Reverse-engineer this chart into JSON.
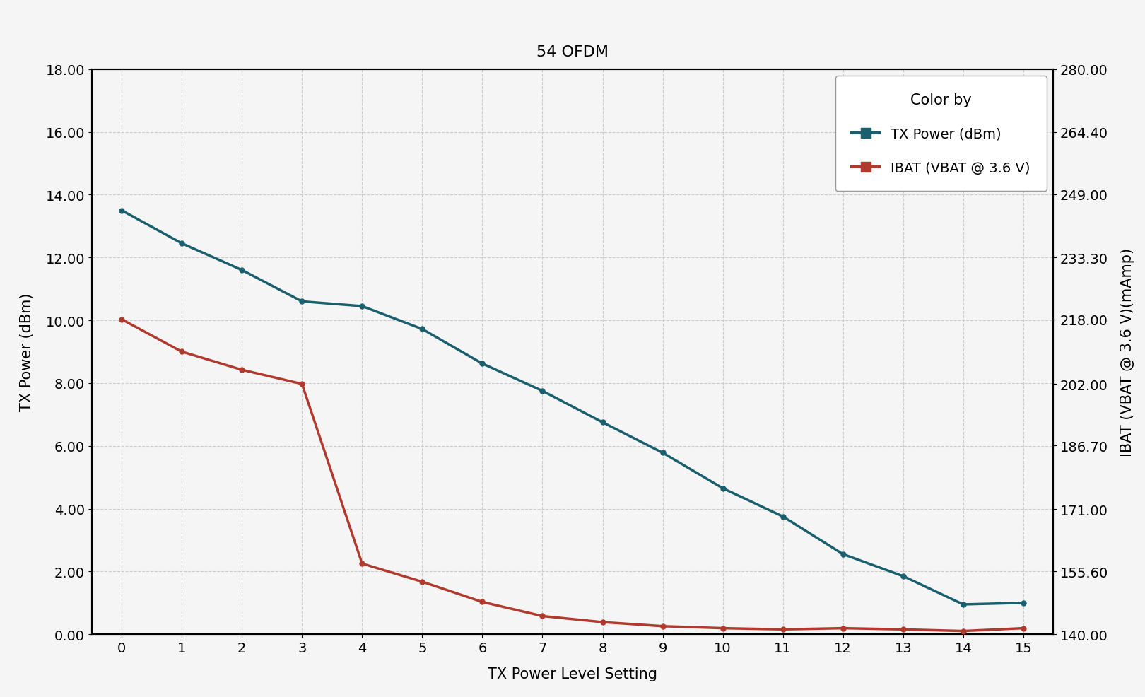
{
  "title": "54 OFDM",
  "xlabel": "TX Power Level Setting",
  "ylabel_left": "TX Power (dBm)",
  "ylabel_right": "IBAT (VBAT @ 3.6 V)(mAmp)",
  "legend_title": "Color by",
  "legend_label_1": "TX Power (dBm)",
  "legend_label_2": "IBAT (VBAT @ 3.6 V)",
  "x": [
    0,
    1,
    2,
    3,
    4,
    5,
    6,
    7,
    8,
    9,
    10,
    11,
    12,
    13,
    14,
    15
  ],
  "tx_power": [
    13.5,
    12.45,
    11.6,
    10.6,
    10.45,
    9.72,
    8.62,
    7.75,
    6.75,
    5.78,
    4.65,
    3.75,
    2.55,
    1.85,
    0.95,
    1.0
  ],
  "ibat": [
    218.0,
    210.0,
    205.5,
    202.0,
    157.5,
    153.0,
    148.0,
    144.5,
    143.0,
    142.0,
    141.5,
    141.2,
    141.5,
    141.2,
    140.8,
    141.5
  ],
  "color_txpower": "#1a5f6e",
  "color_ibat": "#b03a2e",
  "ylim_left": [
    0.0,
    18.0
  ],
  "ylim_right": [
    140.0,
    280.0
  ],
  "yticks_left": [
    0.0,
    2.0,
    4.0,
    6.0,
    8.0,
    10.0,
    12.0,
    14.0,
    16.0,
    18.0
  ],
  "yticks_right": [
    140.0,
    155.6,
    171.0,
    186.7,
    202.0,
    218.0,
    233.3,
    249.0,
    264.4,
    280.0
  ],
  "xticks": [
    0,
    1,
    2,
    3,
    4,
    5,
    6,
    7,
    8,
    9,
    10,
    11,
    12,
    13,
    14,
    15
  ],
  "background_plot": "#f5f5f5",
  "background_title": "#d9d9d9",
  "grid_color": "#cccccc",
  "title_fontsize": 16,
  "axis_label_fontsize": 15,
  "tick_fontsize": 14,
  "legend_fontsize": 14,
  "legend_title_fontsize": 15
}
